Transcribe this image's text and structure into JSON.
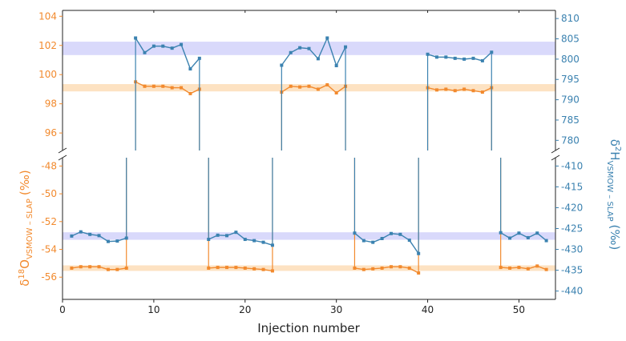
{
  "colors": {
    "d18O": "#f28a2e",
    "d2H": "#3b82b0",
    "band_o": "#fde2c2",
    "band_h": "#d9d9fb",
    "axis": "#222222"
  },
  "chart_data": {
    "type": "line",
    "broken_axis": true,
    "xlabel": "Injection number",
    "xlim": [
      0,
      54
    ],
    "xticks": [
      0,
      10,
      20,
      30,
      40,
      50
    ],
    "left_axis_label": {
      "base": "δ",
      "sup": "18",
      "main": "O",
      "sub": "VSMOW – SLAP",
      "unit": "(‰)"
    },
    "right_axis_label": {
      "base": "δ",
      "sup": "2",
      "main": "H",
      "sub": "VSMOW – SLAP",
      "unit": "(‰)"
    },
    "panels": [
      {
        "name": "upper",
        "left_ylim": [
          94.8,
          104.4
        ],
        "left_yticks": [
          "96",
          "98",
          "100",
          "102",
          "104"
        ],
        "right_ylim": [
          777.5,
          812
        ],
        "right_yticks": [
          "780",
          "785",
          "790",
          "795",
          "800",
          "805",
          "810"
        ],
        "band_d18O": [
          98.85,
          99.35
        ],
        "band_d2H": [
          801,
          804.3
        ]
      },
      {
        "name": "lower",
        "left_ylim": [
          -57.6,
          -47.4
        ],
        "left_yticks": [
          "-48",
          "-50",
          "-52",
          "-54",
          "-56"
        ],
        "right_ylim": [
          -442,
          -408
        ],
        "right_yticks": [
          "-410",
          "-415",
          "-420",
          "-425",
          "-430",
          "-435",
          "-440"
        ],
        "band_d18O": [
          -55.55,
          -55.15
        ],
        "band_d2H": [
          -427.7,
          -425.9
        ]
      }
    ],
    "series": [
      {
        "name": "d18O",
        "axis": "left",
        "points": [
          [
            1,
            -55.35
          ],
          [
            2,
            -55.25
          ],
          [
            3,
            -55.25
          ],
          [
            4,
            -55.25
          ],
          [
            5,
            -55.45
          ],
          [
            6,
            -55.45
          ],
          [
            7,
            -55.35
          ],
          [
            8,
            99.5
          ],
          [
            9,
            99.2
          ],
          [
            10,
            99.2
          ],
          [
            11,
            99.2
          ],
          [
            12,
            99.1
          ],
          [
            13,
            99.1
          ],
          [
            14,
            98.7
          ],
          [
            15,
            99.0
          ],
          [
            16,
            -55.35
          ],
          [
            17,
            -55.3
          ],
          [
            18,
            -55.3
          ],
          [
            19,
            -55.3
          ],
          [
            20,
            -55.35
          ],
          [
            21,
            -55.4
          ],
          [
            22,
            -55.45
          ],
          [
            23,
            -55.55
          ],
          [
            24,
            98.8
          ],
          [
            25,
            99.2
          ],
          [
            26,
            99.15
          ],
          [
            27,
            99.2
          ],
          [
            28,
            99.0
          ],
          [
            29,
            99.3
          ],
          [
            30,
            98.75
          ],
          [
            31,
            99.2
          ],
          [
            32,
            -55.35
          ],
          [
            33,
            -55.45
          ],
          [
            34,
            -55.4
          ],
          [
            35,
            -55.35
          ],
          [
            36,
            -55.25
          ],
          [
            37,
            -55.25
          ],
          [
            38,
            -55.35
          ],
          [
            39,
            -55.7
          ],
          [
            40,
            99.1
          ],
          [
            41,
            98.95
          ],
          [
            42,
            99.0
          ],
          [
            43,
            98.9
          ],
          [
            44,
            99.0
          ],
          [
            45,
            98.9
          ],
          [
            46,
            98.8
          ],
          [
            47,
            99.1
          ],
          [
            48,
            -55.3
          ],
          [
            49,
            -55.35
          ],
          [
            50,
            -55.3
          ],
          [
            51,
            -55.4
          ],
          [
            52,
            -55.2
          ],
          [
            53,
            -55.45
          ]
        ]
      },
      {
        "name": "d2H",
        "axis": "right",
        "points": [
          [
            1,
            -426.8
          ],
          [
            2,
            -425.8
          ],
          [
            3,
            -426.4
          ],
          [
            4,
            -426.7
          ],
          [
            5,
            -428.1
          ],
          [
            6,
            -428.0
          ],
          [
            7,
            -427.3
          ],
          [
            8,
            805.2
          ],
          [
            9,
            801.6
          ],
          [
            10,
            803.2
          ],
          [
            11,
            803.2
          ],
          [
            12,
            802.7
          ],
          [
            13,
            803.6
          ],
          [
            14,
            797.6
          ],
          [
            15,
            800.2
          ],
          [
            16,
            -427.6
          ],
          [
            17,
            -426.6
          ],
          [
            18,
            -426.7
          ],
          [
            19,
            -425.9
          ],
          [
            20,
            -427.6
          ],
          [
            21,
            -427.9
          ],
          [
            22,
            -428.3
          ],
          [
            23,
            -429.0
          ],
          [
            24,
            798.5
          ],
          [
            25,
            801.6
          ],
          [
            26,
            802.8
          ],
          [
            27,
            802.6
          ],
          [
            28,
            800.1
          ],
          [
            29,
            805.2
          ],
          [
            30,
            798.4
          ],
          [
            31,
            803.0
          ],
          [
            32,
            -426.1
          ],
          [
            33,
            -427.9
          ],
          [
            34,
            -428.3
          ],
          [
            35,
            -427.4
          ],
          [
            36,
            -426.2
          ],
          [
            37,
            -426.4
          ],
          [
            38,
            -427.8
          ],
          [
            39,
            -431.0
          ],
          [
            40,
            801.2
          ],
          [
            41,
            800.5
          ],
          [
            42,
            800.5
          ],
          [
            43,
            800.2
          ],
          [
            44,
            800.0
          ],
          [
            45,
            800.2
          ],
          [
            46,
            799.6
          ],
          [
            47,
            801.7
          ],
          [
            48,
            -426.0
          ],
          [
            49,
            -427.3
          ],
          [
            50,
            -426.1
          ],
          [
            51,
            -427.2
          ],
          [
            52,
            -426.1
          ],
          [
            53,
            -427.9
          ]
        ]
      }
    ],
    "groups": [
      [
        1,
        7
      ],
      [
        8,
        15
      ],
      [
        16,
        23
      ],
      [
        24,
        31
      ],
      [
        32,
        39
      ],
      [
        40,
        47
      ],
      [
        48,
        53
      ]
    ]
  }
}
